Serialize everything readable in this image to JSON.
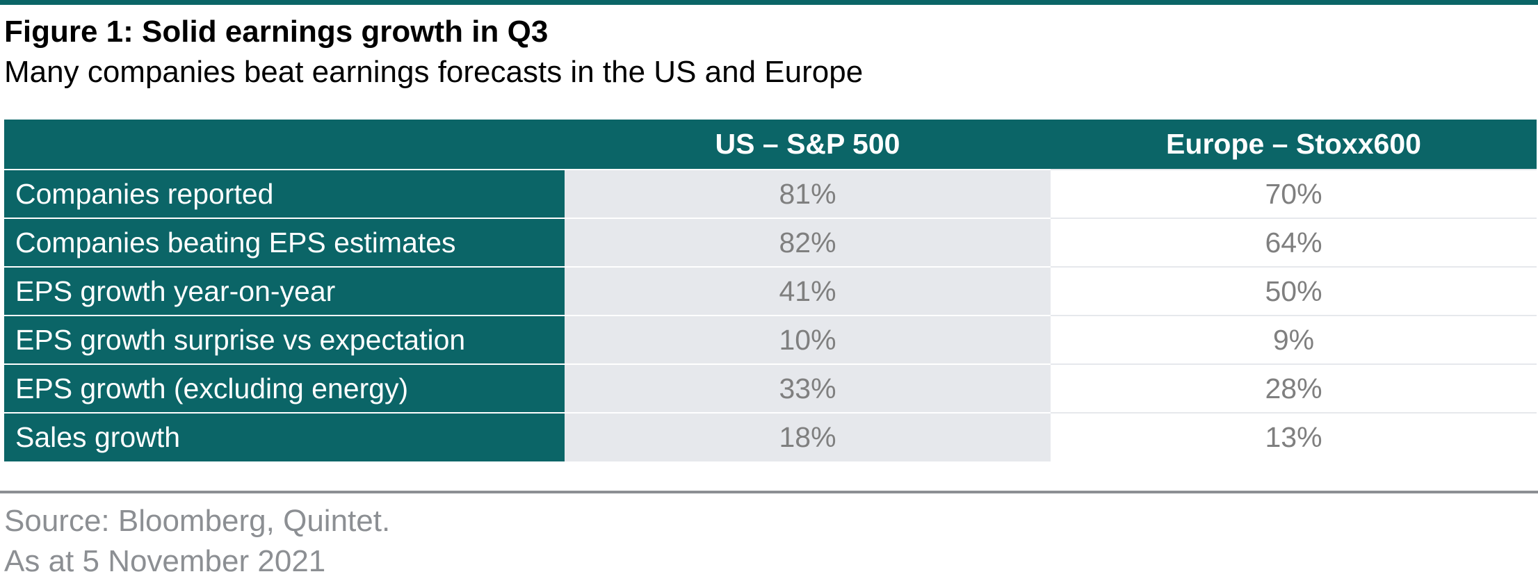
{
  "figure": {
    "title": "Figure 1: Solid earnings growth in Q3",
    "subtitle": "Many companies beat earnings forecasts in the US and Europe"
  },
  "table": {
    "header": [
      "",
      "US – S&P 500",
      "Europe – Stoxx600"
    ],
    "rows": [
      {
        "label": "Companies reported",
        "us": "81%",
        "europe": "70%"
      },
      {
        "label": "Companies beating EPS estimates",
        "us": "82%",
        "europe": "64%"
      },
      {
        "label": "EPS growth year-on-year",
        "us": "41%",
        "europe": "50%"
      },
      {
        "label": "EPS growth surprise vs expectation",
        "us": "10%",
        "europe": "9%"
      },
      {
        "label": "EPS growth (excluding energy)",
        "us": "33%",
        "europe": "28%"
      },
      {
        "label": "Sales growth",
        "us": "18%",
        "europe": "13%"
      }
    ]
  },
  "footer": {
    "source": "Source: Bloomberg, Quintet.",
    "date": "As at 5 November 2021"
  },
  "colors": {
    "accent": "#0b6567",
    "shade": "#e6e8ec",
    "value_text": "#7f7f7f",
    "footer_text": "#8c8f93"
  }
}
